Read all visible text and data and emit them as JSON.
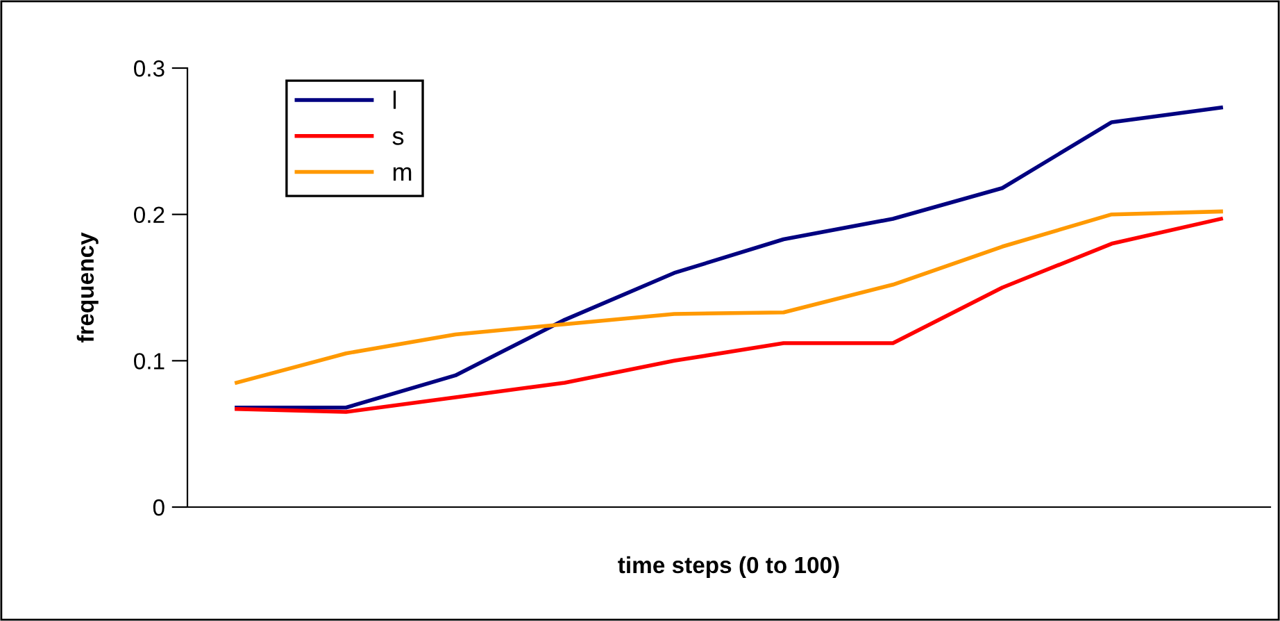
{
  "chart_data": {
    "type": "line",
    "xlabel": "time steps (0 to 100)",
    "ylabel": "frequency",
    "categories": [
      null,
      null,
      null,
      null,
      null,
      null,
      null,
      null,
      null,
      null
    ],
    "series": [
      {
        "name": "l",
        "color": "#000080",
        "values": [
          0.068,
          0.068,
          0.09,
          0.128,
          0.16,
          0.183,
          0.197,
          0.218,
          0.263,
          0.273
        ]
      },
      {
        "name": "s",
        "color": "#ff0000",
        "values": [
          0.067,
          0.065,
          0.075,
          0.085,
          0.1,
          0.112,
          0.112,
          0.15,
          0.18,
          0.197
        ]
      },
      {
        "name": "m",
        "color": "#ff9900",
        "values": [
          0.085,
          0.105,
          0.118,
          0.125,
          0.132,
          0.133,
          0.152,
          0.178,
          0.2,
          0.202
        ]
      }
    ],
    "ylim": [
      0,
      0.3
    ],
    "yticks": [
      0,
      0.1,
      0.2,
      0.3
    ],
    "grid": false,
    "legend": "top left",
    "marker": "none",
    "line_style": "solid"
  }
}
